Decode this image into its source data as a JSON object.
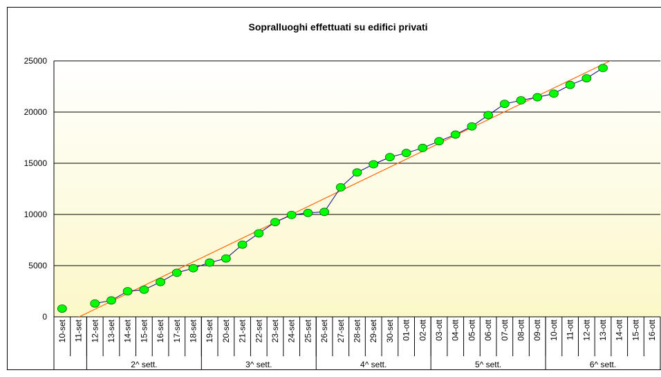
{
  "chart_data": {
    "type": "line",
    "title": "Sopralluoghi effettuati su edifici privati",
    "categories": [
      "10-set",
      "11-set",
      "12-set",
      "13-set",
      "14-set",
      "15-set",
      "16-set",
      "17-set",
      "18-set",
      "19-set",
      "20-set",
      "21-set",
      "22-set",
      "23-set",
      "24-set",
      "25-set",
      "26-set",
      "27-set",
      "28-set",
      "29-set",
      "30-set",
      "01-ott",
      "02-ott",
      "03-ott",
      "04-ott",
      "05-ott",
      "06-ott",
      "07-ott",
      "08-ott",
      "09-ott",
      "10-ott",
      "11-ott",
      "12-ott",
      "13-ott",
      "14-ott",
      "15-ott",
      "16-ott"
    ],
    "groups": [
      {
        "label": null,
        "count": 2
      },
      {
        "label": "2^ sett.",
        "count": 7
      },
      {
        "label": "3^ sett.",
        "count": 7
      },
      {
        "label": "4^ sett.",
        "count": 7
      },
      {
        "label": "5^ sett.",
        "count": 7
      },
      {
        "label": "6^ sett.",
        "count": 7
      }
    ],
    "series": [
      {
        "color": "#000080",
        "marker_color": "#00ff00",
        "values": [
          800,
          null,
          1300,
          1600,
          2500,
          2650,
          3400,
          4300,
          4750,
          5300,
          5700,
          7050,
          8150,
          9250,
          9950,
          10150,
          10250,
          12650,
          14100,
          14900,
          15600,
          16000,
          16500,
          17150,
          17800,
          18600,
          19700,
          20800,
          21150,
          21450,
          21800,
          22650,
          23300,
          24300,
          null,
          null,
          null
        ]
      }
    ],
    "trendline": {
      "type": "linear",
      "color": "#ff6600"
    },
    "ylim": [
      0,
      25000
    ],
    "yticks": [
      0,
      5000,
      10000,
      15000,
      20000,
      25000
    ],
    "grid": true
  }
}
